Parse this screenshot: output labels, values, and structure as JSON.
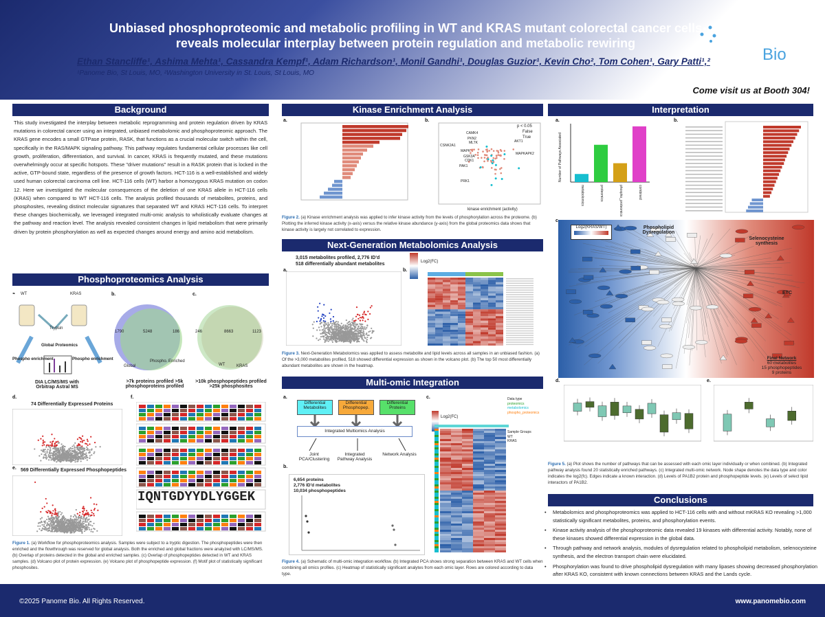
{
  "header": {
    "title": "Unbiased phosphoproteomic and metabolic profiling in WT and KRAS mutant colorectal cancer cells reveals molecular interplay between protein regulation and metabolic rewiring",
    "authors": "Ethan Stancliffe¹, Ashima Mehta¹, Cassandra Kempf¹, Adam Richardson¹, Monil Gandhi¹, Douglas Guzior¹, Kevin Cho², Tom Cohen¹, Gary Patti¹,²",
    "affiliations": "¹Panome Bio, St Louis, MO, ²Washington University in St. Louis, St Louis, MO",
    "logo_word1": "Panome",
    "logo_word2": "Bio",
    "booth": "Come visit us at Booth 304!"
  },
  "sections": {
    "background": "Background",
    "phospho": "Phosphoproteomics Analysis",
    "kinase": "Kinase Enrichment Analysis",
    "ngm": "Next-Generation Metabolomics Analysis",
    "multi": "Multi-omic Integration",
    "interp": "Interpretation",
    "conc": "Conclusions"
  },
  "background_text": "This study investigated the interplay between metabolic reprogramming and protein regulation driven by KRAS mutations in colorectal cancer using an integrated, unbiased metabolomic and phosphoproteomic approach. The KRAS gene encodes a small GTPase protein, RASK, that functions as a crucial molecular switch within the cell, specifically in the RAS/MAPK signaling pathway. This pathway regulates fundamental cellular processes like cell growth, proliferation, differentiation, and survival. In cancer, KRAS is frequently mutated, and these mutations overwhelmingly occur at specific hotspots. These \"driver mutations\" result in a RASK protein that is locked in the active, GTP-bound state, regardless of the presence of growth factors. HCT-116 is a well-established and widely used human colorectal carcinoma cell line. HCT-116 cells (WT) harbor a homozygous KRAS mutation on codon 12. Here we investigated the molecular consequences of the deletion of one KRAS allele in HCT-116 cells (KRAS) when compared to WT HCT-116 cells. The analysis profiled thousands of metabolites, proteins, and phosphosites, revealing distinct molecular signatures that separated WT and KRAS HCT-116 cells. To interpret these changes biochemically, we leveraged integrated multi-omic analysis to wholistically evaluate changes at the pathway and reaction level. The analysis revealed consistent changes in lipid metabolism that were primarily driven by protein phosphorylation as well as expected changes around energy and amino acid metabolism.",
  "phospho": {
    "a_wt": "WT",
    "a_kras": "KRAS",
    "trypsin": "Trypsin",
    "global": "Global Proteomics",
    "penrich": "Phospho enrichment",
    "penrich2": "Phospho enrichment",
    "dia": "DIA LC/MS/MS with Orbitrap Astral MS",
    "venn1_left": "1790",
    "venn1_mid": "5248",
    "venn1_right": "186",
    "venn1_l1": "Global",
    "venn1_l2": "Phospho. Enriched",
    "venn1_cap": ">7k proteins profiled >5k phosphoproteins profiled",
    "venn2_left": "246",
    "venn2_mid": "8663",
    "venn2_right": "1123",
    "venn2_l1": "WT",
    "venn2_l2": "KRAS",
    "venn2_cap": ">10k phosphopeptides profiled >25k phosphosites",
    "d_title": "74 Differentially Expressed Proteins",
    "e_title": "569 Differentially Expressed Phosphopeptides",
    "motif_big": "IQNTGDYYDLYGGEK",
    "caption": "(a) Workflow for phosphoproteomics analysis. Samples were subject to a tryptic digestion. The phosphopeptides were then enriched and the flowthrough was reserved for global analysis. Both the enriched and global fractions were analyzed with LC/MS/MS. (b) Overlap of proteins detected in the global and enriched samples. (c) Overlap of phosphopeptides detected in WT and KRAS samples. (d) Volcano plot of protein expression. (e) Volcano plot of phosphopeptide expression. (f) Motif plot of statistically significant phosphosites.",
    "caption_label": "Figure 1."
  },
  "kinase": {
    "caption_label": "Figure 2.",
    "caption": "(a) Kinase enrichment analysis was applied to infer kinase activity from the levels of phosphorylation across the proteome. (b) Plotting the inferred kinase activity (x-axis) versus the relative kinase abundance (y-axis) from the global proteomics data shows that kinase activity is largely not correlated to expression.",
    "b_legend_title": "p < 0.05",
    "b_legend_false": "False",
    "b_legend_true": "True",
    "b_xlabel": "kinase enrichment (activity)",
    "b_ylabel": "relative kinase abundance",
    "kin_labels": [
      "CAMK4",
      "PKN2",
      "MLTK",
      "CSNK2A1",
      "MAPK",
      "GSK3A",
      "CDK1",
      "PRK1",
      "AKT1",
      "MAPKAPK2",
      "PAK1"
    ]
  },
  "ngm": {
    "summary1": "3,015 metabolites profiled, 2,776 ID'd",
    "summary2": "518 differentially abundant metabolites",
    "log2": "Log2(FC)",
    "caption_label": "Figure 3.",
    "caption": "Next-Generation Metabolomics was applied to assess metabolite and lipid levels across all samples in an unbiased fashion. (a) Of the >3,000 metabolites profiled, 518 showed differential expression as shown in the volcano plot. (b) The top 50 most differentially abundant metabolites are shown in the heatmap."
  },
  "multi": {
    "box1": "Differential Metabolites",
    "box2": "Differential Phosphopep.",
    "box3": "Differential Proteins",
    "center": "Integrated Multiomics Analysis",
    "out1": "Joint PCA/Clustering",
    "out2": "Integrated Pathway Analysis",
    "out3": "Network Analysis",
    "b_text1": "6,654 proteins",
    "b_text2": "2,776 ID'd metabolites",
    "b_text3": "10,034 phosphopeptides",
    "log2": "Log2(FC)",
    "legend_dt": "Data type",
    "legend_items": [
      "proteomics",
      "metabolomics",
      "phospho_proteomics"
    ],
    "legend_sg": "Sample Groups",
    "legend_sg_items": [
      "WT",
      "KRAS"
    ],
    "caption_label": "Figure 4.",
    "caption": "(a) Schematic of multi-omic integration workflow. (b) Integrated PCA shows strong separation between KRAS and WT cells when combining all omics profiles. (c) Heatmap of statistically significant analytes from each omic layer. Rows are colored according to data type."
  },
  "interp": {
    "bar_categories": [
      "metabolomics",
      "proteomics",
      "phospho_proteomics",
      "combined"
    ],
    "bar_values": [
      18,
      83,
      42,
      124
    ],
    "bar_ylabel": "Number of Pathways Associated",
    "net_log2": "Log2(KRAS/WT)",
    "net_l1": "Phospholipid Dysregulation",
    "net_l2": "Selenocysteine synthesis",
    "net_l3": "ETC",
    "final_title": "Final Network",
    "final_1": "60 metabolites",
    "final_2": "15 phosphopeptides",
    "final_3": "9 proteins",
    "caption_label": "Figure 5.",
    "caption": "(a) Plot shows the number of pathways that can be assessed with each omic layer individually or when combined. (b) Integrated pathway analysis found 20 statistically enriched pathways. (c) Integrated multi-omic network. Node shape denotes the data type and color indicates the log2(fc). Edges indicate a known interaction. (d) Levels of PA1B2 protein and phosphopeptide levels. (e) Levels of select lipid interactors of PA1B2."
  },
  "conclusions": [
    "Metabolomics and phosphoproteomics was applied to HCT-116 cells with and without mKRAS KO revealing >1,000 statistically significant metabolites, proteins, and phosphorylation events.",
    "Kinase activity analysis of the phosphoproteomic data revealed 19 kinases with differential activity. Notably, none of these kinases showed differential expression in the global data.",
    "Through pathway and network analysis, modules of dysregulation related to phospholipid metabolism, selenocysteine synthesis, and the electron transport chain were elucidated.",
    "Phosphorylation was found to drive phospholipid dysregulation with many lipases showing decreased phosphorylation after KRAS KO, consistent with known connections between KRAS and the Lands cycle."
  ],
  "footer": {
    "copyright": "©2025 Panome Bio. All Rights Reserved.",
    "url": "www.panomebio.com"
  },
  "colors": {
    "navy": "#1b2a6e",
    "accent": "#4aa3df",
    "red": "#c0392b",
    "blue": "#2c5fa8"
  }
}
